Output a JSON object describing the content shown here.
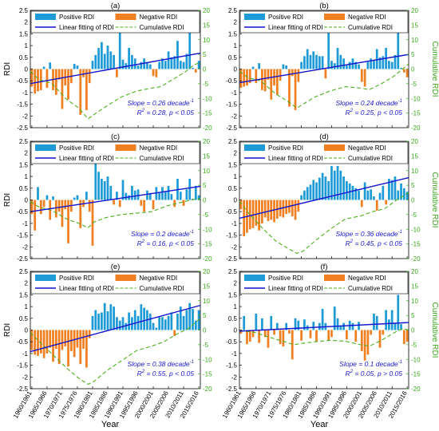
{
  "figure": {
    "xlabel": "Year",
    "left_ylabel": "RDI",
    "right_ylabel": "Cumulative RDI",
    "xtick_labels": [
      "1960/1961",
      "1965/1966",
      "1970/1971",
      "1975/1976",
      "1980/1981",
      "1985/1986",
      "1990/1991",
      "1995/1996",
      "2000/2001",
      "2005/2006",
      "2010/2011",
      "2015/2016"
    ],
    "left_ticks": [
      "2.5",
      "2",
      "1.5",
      "1",
      "0.5",
      "0",
      "-0.5",
      "-1",
      "-1.5",
      "-2",
      "-2.5"
    ],
    "right_ticks": [
      "20",
      "15",
      "10",
      "5",
      "0",
      "-5",
      "-10",
      "-15",
      "-20"
    ],
    "legend": {
      "positive": "Positive RDI",
      "negative": "Negative RDI",
      "fit": "Linear fitting of RDI",
      "cumulative": "Cumulative RDI"
    },
    "colors": {
      "positive": "#1e9bd7",
      "negative": "#f07f22",
      "fit": "#1010d0",
      "cumulative": "#4caf1a",
      "right_axis": "#3aa81a",
      "stat_text": "#1a1ad0"
    }
  },
  "chart_data": [
    {
      "panel": "a",
      "label": "(a)",
      "type": "bar",
      "x_start": 1960,
      "x_end": 2016,
      "ylim": [
        -2.5,
        2.5
      ],
      "y2lim": [
        -20,
        20
      ],
      "values": [
        -0.75,
        -1.05,
        -0.95,
        -0.9,
        0.1,
        -0.8,
        0.28,
        -0.9,
        -1.1,
        -0.45,
        -1.7,
        -0.7,
        -1.3,
        -0.6,
        0.22,
        0.15,
        -1.95,
        -0.35,
        -1.75,
        -0.6,
        0.35,
        0.6,
        0.9,
        1.15,
        0.65,
        1.0,
        0.75,
        0.6,
        -0.35,
        1.7,
        0.4,
        0.25,
        0.9,
        0.6,
        0.45,
        0.15,
        0.3,
        0.45,
        0.3,
        0.2,
        -0.3,
        -0.35,
        0.3,
        0.45,
        0.35,
        0.75,
        0.5,
        0.55,
        1.2,
        0.35,
        0.3,
        0.65,
        1.7,
        0.05,
        -0.15,
        0.35
      ],
      "fit_line": [
        [
          1960,
          -0.62
        ],
        [
          2016,
          0.68
        ]
      ],
      "cumulative": [
        [
          1960,
          -0.8
        ],
        [
          1963,
          -3.7
        ],
        [
          1967,
          -4.8
        ],
        [
          1972,
          -10.4
        ],
        [
          1976,
          -13.3
        ],
        [
          1979,
          -17.0
        ],
        [
          1981,
          -15.5
        ],
        [
          1985,
          -12.7
        ],
        [
          1990,
          -9.5
        ],
        [
          1995,
          -7.5
        ],
        [
          2000,
          -6.5
        ],
        [
          2003,
          -6.0
        ],
        [
          2007,
          -3.5
        ],
        [
          2011,
          -1.0
        ],
        [
          2014,
          1.5
        ],
        [
          2016,
          2.2
        ]
      ],
      "annotation": {
        "slope_prefix": "Slope = 0.26 decade",
        "slope_exp": "-1",
        "r2_prefix": "R",
        "r2_exp": "2",
        "r2_rest": " = 0.28, p < 0.05"
      }
    },
    {
      "panel": "b",
      "label": "(b)",
      "type": "bar",
      "x_start": 1960,
      "x_end": 2016,
      "ylim": [
        -2.5,
        2.5
      ],
      "y2lim": [
        -20,
        20
      ],
      "values": [
        -0.8,
        -0.75,
        -0.7,
        -0.6,
        0.1,
        -0.6,
        0.25,
        -0.9,
        -0.95,
        -0.45,
        -1.3,
        -0.7,
        -1.1,
        -0.5,
        0.2,
        0.15,
        -1.6,
        -0.3,
        -1.75,
        -0.55,
        0.3,
        0.55,
        0.85,
        0.6,
        0.75,
        0.6,
        0.55,
        0.55,
        -0.4,
        1.75,
        0.35,
        0.25,
        0.9,
        0.6,
        0.45,
        0.15,
        0.3,
        0.45,
        0.3,
        0.2,
        -0.55,
        -0.75,
        0.3,
        0.45,
        0.35,
        0.85,
        0.5,
        0.55,
        0.9,
        0.35,
        0.3,
        0.6,
        1.6,
        0.05,
        -0.15,
        -0.35
      ],
      "fit_line": [
        [
          1960,
          -0.58
        ],
        [
          2016,
          0.62
        ]
      ],
      "cumulative": [
        [
          1960,
          -0.8
        ],
        [
          1963,
          -3.0
        ],
        [
          1967,
          -4.0
        ],
        [
          1972,
          -8.5
        ],
        [
          1976,
          -11.0
        ],
        [
          1979,
          -13.3
        ],
        [
          1981,
          -12.0
        ],
        [
          1985,
          -9.5
        ],
        [
          1990,
          -7.5
        ],
        [
          1995,
          -6.0
        ],
        [
          2000,
          -6.5
        ],
        [
          2003,
          -7.0
        ],
        [
          2007,
          -5.0
        ],
        [
          2011,
          -2.5
        ],
        [
          2014,
          0.0
        ],
        [
          2016,
          1.8
        ]
      ],
      "annotation": {
        "slope_prefix": "Slope = 0.24 decade",
        "slope_exp": "-1",
        "r2_prefix": "R",
        "r2_exp": "2",
        "r2_rest": " = 0.25, p < 0.05"
      }
    },
    {
      "panel": "c",
      "label": "(c)",
      "type": "bar",
      "x_start": 1960,
      "x_end": 2016,
      "ylim": [
        -2.5,
        2.5
      ],
      "y2lim": [
        -20,
        20
      ],
      "values": [
        -0.6,
        -1.3,
        0.55,
        -0.6,
        -0.3,
        0.2,
        -0.85,
        0.15,
        -0.75,
        -0.5,
        -1.15,
        -0.4,
        -1.85,
        -0.5,
        0.1,
        0.2,
        -1.2,
        -0.3,
        0.35,
        -0.5,
        -1.95,
        1.75,
        1.2,
        0.9,
        0.8,
        1.0,
        0.6,
        -0.2,
        0.35,
        -0.3,
        0.85,
        0.3,
        0.2,
        0.6,
        0.4,
        0.45,
        -0.25,
        -0.5,
        0.4,
        0.3,
        -0.4,
        0.55,
        0.3,
        0.55,
        0.35,
        0.6,
        0.25,
        -0.3,
        0.9,
        0.35,
        -0.25,
        0.45,
        0.9,
        0.05,
        0.6,
        0.2
      ],
      "fit_line": [
        [
          1960,
          -0.5
        ],
        [
          2016,
          0.58
        ]
      ],
      "cumulative": [
        [
          1960,
          -0.6
        ],
        [
          1963,
          -2.5
        ],
        [
          1967,
          -3.5
        ],
        [
          1972,
          -6.5
        ],
        [
          1976,
          -8.0
        ],
        [
          1979,
          -9.5
        ],
        [
          1981,
          -7.5
        ],
        [
          1985,
          -6.0
        ],
        [
          1990,
          -5.0
        ],
        [
          1995,
          -4.5
        ],
        [
          2000,
          -4.0
        ],
        [
          2005,
          -2.0
        ],
        [
          2009,
          -1.0
        ],
        [
          2013,
          0.0
        ],
        [
          2016,
          0.5
        ]
      ],
      "annotation": {
        "slope_prefix": "Slope = 0.2 decade",
        "slope_exp": "-1",
        "r2_prefix": "R",
        "r2_exp": "2",
        "r2_rest": " = 0.16, p < 0.05"
      }
    },
    {
      "panel": "d",
      "label": "(d)",
      "type": "bar",
      "x_start": 1960,
      "x_end": 2016,
      "ylim": [
        -2.5,
        2.5
      ],
      "y2lim": [
        -20,
        20
      ],
      "values": [
        -0.4,
        -1.55,
        -1.4,
        -1.25,
        -1.2,
        -1.1,
        -1.3,
        -1.0,
        -0.75,
        -0.9,
        -0.85,
        -0.95,
        -0.8,
        -0.7,
        -0.75,
        -0.6,
        -0.55,
        -0.7,
        -0.85,
        -0.5,
        0.2,
        0.4,
        0.55,
        0.65,
        0.85,
        0.75,
        0.95,
        1.15,
        1.0,
        0.8,
        1.45,
        1.25,
        1.45,
        1.25,
        1.0,
        0.8,
        0.7,
        0.6,
        0.5,
        0.4,
        -0.3,
        0.75,
        0.4,
        0.45,
        0.15,
        -0.45,
        0.3,
        0.6,
        -0.2,
        0.9,
        0.85,
        1.0,
        0.4,
        0.7,
        0.5,
        0.35
      ],
      "fit_line": [
        [
          1960,
          -0.78
        ],
        [
          2016,
          0.95
        ]
      ],
      "cumulative": [
        [
          1960,
          -0.4
        ],
        [
          1963,
          -4.5
        ],
        [
          1967,
          -9.0
        ],
        [
          1972,
          -14.0
        ],
        [
          1976,
          -16.5
        ],
        [
          1979,
          -18.2
        ],
        [
          1981,
          -17.5
        ],
        [
          1985,
          -14.0
        ],
        [
          1990,
          -10.0
        ],
        [
          1995,
          -6.5
        ],
        [
          2000,
          -5.5
        ],
        [
          2004,
          -4.0
        ],
        [
          2008,
          -3.0
        ],
        [
          2012,
          0.0
        ],
        [
          2016,
          2.5
        ]
      ],
      "annotation": {
        "slope_prefix": "Slope = 0.36 decade",
        "slope_exp": "-1",
        "r2_prefix": "R",
        "r2_exp": "2",
        "r2_rest": " = 0.45, p < 0.05"
      }
    },
    {
      "panel": "e",
      "label": "(e)",
      "type": "bar",
      "x_start": 1960,
      "x_end": 2016,
      "ylim": [
        -2.5,
        2.5
      ],
      "y2lim": [
        -20,
        20
      ],
      "values": [
        -0.85,
        -1.05,
        -1.1,
        -1.0,
        -1.2,
        -1.0,
        -0.75,
        -1.35,
        -0.8,
        -1.45,
        -0.85,
        -0.7,
        -1.55,
        -0.9,
        -1.15,
        -0.75,
        -1.45,
        -0.8,
        -1.6,
        -0.35,
        0.6,
        0.85,
        0.7,
        0.75,
        1.15,
        0.8,
        1.1,
        1.0,
        0.55,
        0.4,
        0.55,
        0.3,
        0.75,
        0.55,
        0.85,
        0.6,
        1.1,
        0.95,
        0.85,
        0.7,
        0.3,
        0.1,
        0.55,
        0.55,
        0.45,
        0.6,
        0.75,
        -0.25,
        0.7,
        1.0,
        0.6,
        0.85,
        1.15,
        0.9,
        0.4,
        0.85
      ],
      "fit_line": [
        [
          1960,
          -0.92
        ],
        [
          2016,
          1.05
        ]
      ],
      "cumulative": [
        [
          1960,
          -0.85
        ],
        [
          1963,
          -4.0
        ],
        [
          1967,
          -8.0
        ],
        [
          1972,
          -13.0
        ],
        [
          1976,
          -16.5
        ],
        [
          1979,
          -18.5
        ],
        [
          1981,
          -17.5
        ],
        [
          1985,
          -14.0
        ],
        [
          1990,
          -10.5
        ],
        [
          1995,
          -7.0
        ],
        [
          2000,
          -5.5
        ],
        [
          2004,
          -4.0
        ],
        [
          2008,
          -1.5
        ],
        [
          2012,
          0.5
        ],
        [
          2016,
          4.0
        ]
      ],
      "annotation": {
        "slope_prefix": "Slope = 0.38 decade",
        "slope_exp": "-1",
        "r2_prefix": "R",
        "r2_exp": "2",
        "r2_rest": " = 0.55, p < 0.05"
      }
    },
    {
      "panel": "f",
      "label": "(f)",
      "type": "bar",
      "x_start": 1960,
      "x_end": 2016,
      "ylim": [
        -2.5,
        2.5
      ],
      "y2lim": [
        -20,
        20
      ],
      "values": [
        -0.15,
        0.6,
        -0.6,
        -0.5,
        -0.3,
        0.7,
        -0.55,
        0.5,
        -0.3,
        -0.75,
        0.6,
        -0.2,
        0.3,
        -0.6,
        -0.7,
        0.3,
        -0.15,
        -1.25,
        0.5,
        0.4,
        -0.45,
        0.45,
        0.2,
        -0.35,
        0.35,
        -0.5,
        0.3,
        0.9,
        0.3,
        -0.45,
        -0.3,
        1.0,
        0.5,
        0.2,
        0.3,
        -0.4,
        0.4,
        0.3,
        -0.5,
        0.35,
        -0.9,
        -1.3,
        -1.05,
        -0.2,
        0.7,
        0.6,
        -0.75,
        -0.2,
        0.85,
        0.45,
        0.85,
        0.3,
        1.5,
        0.25,
        -0.6,
        -0.5
      ],
      "fit_line": [
        [
          1960,
          -0.05
        ],
        [
          2016,
          0.32
        ]
      ],
      "cumulative": [
        [
          1960,
          -0.1
        ],
        [
          1965,
          -0.8
        ],
        [
          1970,
          -2.5
        ],
        [
          1975,
          -4.0
        ],
        [
          1978,
          -5.0
        ],
        [
          1981,
          -4.5
        ],
        [
          1985,
          -4.0
        ],
        [
          1990,
          -3.5
        ],
        [
          1995,
          -3.8
        ],
        [
          2000,
          -5.0
        ],
        [
          2003,
          -5.5
        ],
        [
          2007,
          -3.5
        ],
        [
          2011,
          -1.0
        ],
        [
          2014,
          0.5
        ],
        [
          2016,
          0.0
        ]
      ],
      "annotation": {
        "slope_prefix": "Slope = 0.1 decade",
        "slope_exp": "-1",
        "r2_prefix": "R",
        "r2_exp": "2",
        "r2_rest": " = 0.05, p > 0.05"
      }
    }
  ]
}
